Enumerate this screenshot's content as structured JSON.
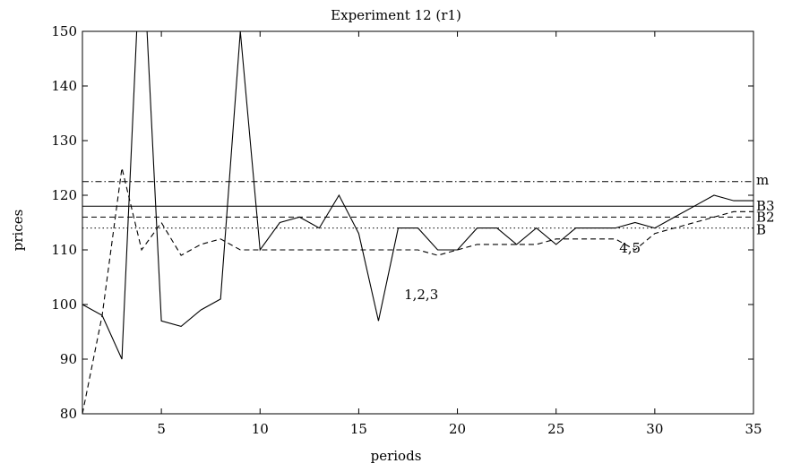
{
  "chart_data": {
    "type": "line",
    "title": "Experiment 12 (r1)",
    "xlabel": "periods",
    "ylabel": "prices",
    "xlim": [
      1,
      35
    ],
    "ylim": [
      80,
      150
    ],
    "xticks": [
      5,
      10,
      15,
      20,
      25,
      30,
      35
    ],
    "yticks": [
      80,
      90,
      100,
      110,
      120,
      130,
      140,
      150
    ],
    "grid": false,
    "series": [
      {
        "style": "solid",
        "x": [
          1,
          2,
          3,
          4,
          5,
          6,
          7,
          8,
          9,
          10,
          11,
          12,
          13,
          14,
          15,
          16,
          17,
          18,
          19,
          20,
          21,
          22,
          23,
          24,
          25,
          26,
          27,
          28,
          29,
          30,
          31,
          32,
          33,
          34,
          35
        ],
        "y": [
          100,
          98,
          90,
          170,
          97,
          96,
          99,
          101,
          150,
          110,
          115,
          116,
          114,
          120,
          113,
          97,
          114,
          114,
          110,
          110,
          114,
          114,
          111,
          114,
          111,
          114,
          114,
          114,
          115,
          114,
          116,
          118,
          120,
          119,
          119
        ]
      },
      {
        "style": "dashed",
        "x": [
          1,
          2,
          3,
          4,
          5,
          6,
          7,
          8,
          9,
          10,
          11,
          12,
          13,
          14,
          15,
          16,
          17,
          18,
          19,
          20,
          21,
          22,
          23,
          24,
          25,
          26,
          27,
          28,
          29,
          30,
          31,
          32,
          33,
          34,
          35
        ],
        "y": [
          80,
          98,
          125,
          110,
          115,
          109,
          111,
          112,
          110,
          110,
          110,
          110,
          110,
          110,
          110,
          110,
          110,
          110,
          109,
          110,
          111,
          111,
          111,
          111,
          112,
          112,
          112,
          112,
          110,
          113,
          114,
          115,
          116,
          117,
          117
        ]
      }
    ],
    "reference_lines": [
      {
        "label": "m",
        "y": 122.5,
        "style": "dashdot"
      },
      {
        "label": "B3",
        "y": 118,
        "style": "solid"
      },
      {
        "label": "B2",
        "y": 116,
        "style": "dashed"
      },
      {
        "label": "B",
        "y": 114,
        "style": "dotted"
      }
    ],
    "annotations": [
      {
        "text": "1,2,3",
        "x": 17.3,
        "y": 101
      },
      {
        "text": "4,5",
        "x": 28.2,
        "y": 109.5
      }
    ]
  }
}
